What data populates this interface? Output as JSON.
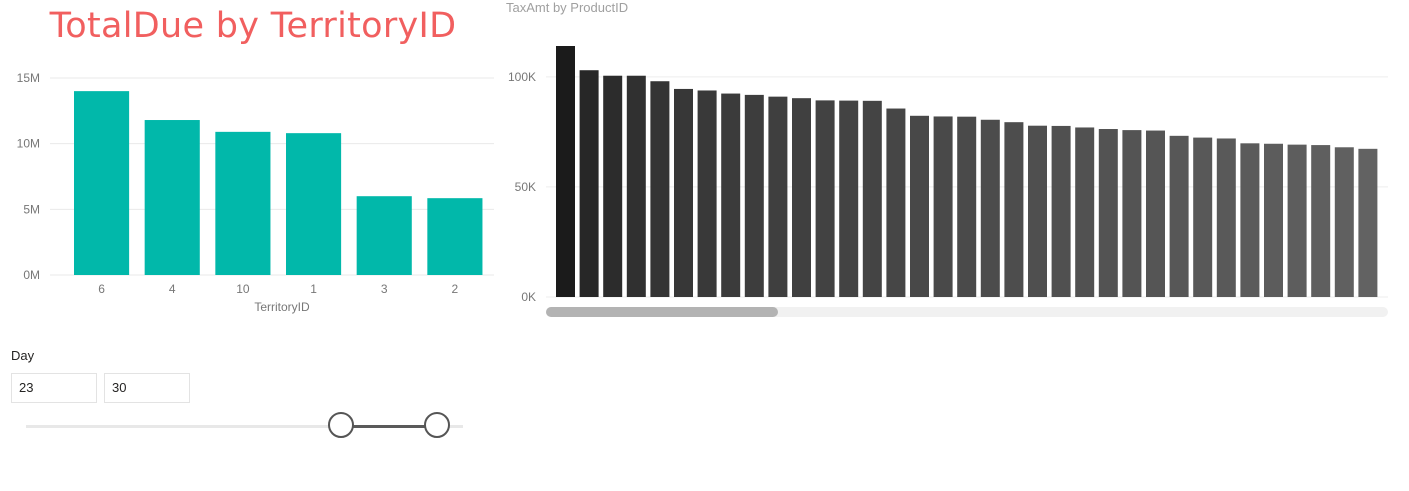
{
  "title": "TotalDue by TerritoryID",
  "chart_data": [
    {
      "type": "bar",
      "title": "",
      "xlabel": "TerritoryID",
      "ylabel": "",
      "categories": [
        "6",
        "4",
        "10",
        "1",
        "3",
        "2"
      ],
      "values": [
        14000000,
        11800000,
        10900000,
        10800000,
        6000000,
        5850000
      ],
      "ylim": [
        0,
        15000000
      ],
      "yticks": [
        "0M",
        "5M",
        "10M",
        "15M"
      ],
      "color": "#01b8aa",
      "grid": true
    },
    {
      "type": "bar",
      "title": "TaxAmt by ProductID",
      "xlabel": "",
      "ylabel": "",
      "values": [
        114000,
        103000,
        100500,
        100500,
        98000,
        94500,
        93800,
        92400,
        91800,
        91000,
        90300,
        89300,
        89200,
        89100,
        85600,
        82300,
        82000,
        81900,
        80500,
        79400,
        77800,
        77700,
        77000,
        76300,
        75800,
        75600,
        73200,
        72400,
        72000,
        69800,
        69600,
        69200,
        69000,
        68000,
        67300
      ],
      "ylim": [
        0,
        114000
      ],
      "yticks": [
        "0K",
        "50K",
        "100K"
      ],
      "colors": [
        "#1b1b1b",
        "#272727",
        "#2c2c2c",
        "#303030",
        "#343434",
        "#373737",
        "#393939",
        "#3b3b3b",
        "#3d3d3d",
        "#3f3f3f",
        "#404040",
        "#424242",
        "#434343",
        "#444444",
        "#464646",
        "#484848",
        "#494949",
        "#4a4a4a",
        "#4c4c4c",
        "#4d4d4d",
        "#4f4f4f",
        "#505050",
        "#515151",
        "#535353",
        "#545454",
        "#555555",
        "#575757",
        "#585858",
        "#595959",
        "#5b5b5b",
        "#5c5c5c",
        "#5d5d5d",
        "#5f5f5f",
        "#606060",
        "#626262"
      ],
      "grid": true
    }
  ],
  "slicer": {
    "label": "Day",
    "from": "23",
    "to": "30",
    "range_min": 1,
    "range_max": 31,
    "from_value": 23,
    "to_value": 30
  },
  "scrollbar": {
    "thumb_start_fraction": 0,
    "thumb_size_fraction": 0.275
  }
}
